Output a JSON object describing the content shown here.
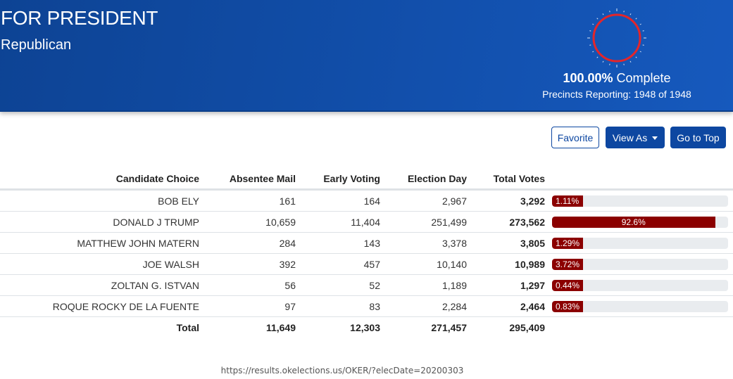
{
  "header": {
    "title": "FOR PRESIDENT",
    "party": "Republican",
    "gauge": {
      "percent": 100,
      "color": "#e3262b"
    },
    "complete_pct": "100.00%",
    "complete_label": "Complete",
    "precincts": "Precincts Reporting: 1948 of 1948"
  },
  "toolbar": {
    "favorite_label": "Favorite",
    "view_as_label": "View As",
    "go_top_label": "Go to Top"
  },
  "table": {
    "columns": [
      "Candidate Choice",
      "Absentee Mail",
      "Early Voting",
      "Election Day",
      "Total Votes",
      ""
    ],
    "rows": [
      {
        "candidate": "BOB ELY",
        "absentee": "161",
        "early": "164",
        "election_day": "2,967",
        "total": "3,292",
        "pct": "1.11%",
        "pct_value": 1.11
      },
      {
        "candidate": "DONALD J TRUMP",
        "absentee": "10,659",
        "early": "11,404",
        "election_day": "251,499",
        "total": "273,562",
        "pct": "92.6%",
        "pct_value": 92.6
      },
      {
        "candidate": "MATTHEW JOHN MATERN",
        "absentee": "284",
        "early": "143",
        "election_day": "3,378",
        "total": "3,805",
        "pct": "1.29%",
        "pct_value": 1.29
      },
      {
        "candidate": "JOE WALSH",
        "absentee": "392",
        "early": "457",
        "election_day": "10,140",
        "total": "10,989",
        "pct": "3.72%",
        "pct_value": 3.72
      },
      {
        "candidate": "ZOLTAN G. ISTVAN",
        "absentee": "56",
        "early": "52",
        "election_day": "1,189",
        "total": "1,297",
        "pct": "0.44%",
        "pct_value": 0.44
      },
      {
        "candidate": "ROQUE ROCKY DE LA FUENTE",
        "absentee": "97",
        "early": "83",
        "election_day": "2,284",
        "total": "2,464",
        "pct": "0.83%",
        "pct_value": 0.83
      }
    ],
    "total": {
      "label": "Total",
      "absentee": "11,649",
      "early": "12,303",
      "election_day": "271,457",
      "total": "295,409"
    }
  },
  "colors": {
    "header_blue": "#1250ad",
    "button_blue": "#0d47a1",
    "bar_red": "#8b0000",
    "bar_track": "#e9ecef"
  },
  "footer": {
    "url": "https://results.okelections.us/OKER/?elecDate=20200303"
  }
}
